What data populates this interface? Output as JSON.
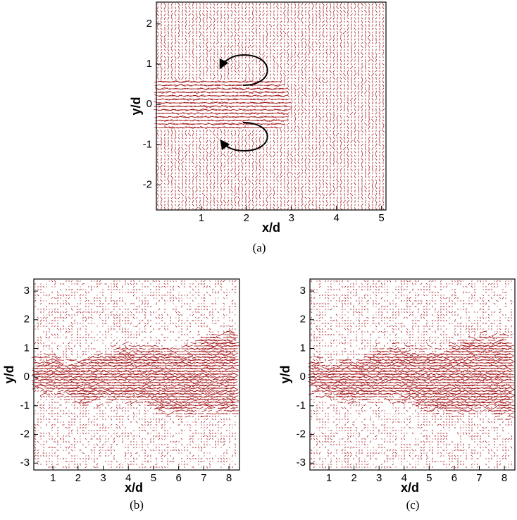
{
  "chart_data": [
    {
      "type": "quiver",
      "xlabel": "x/d",
      "ylabel": "y/d",
      "caption": "(a)",
      "xlim": [
        0,
        5.1
      ],
      "ylim": [
        -2.62,
        2.54
      ],
      "xticks": [
        1,
        2,
        3,
        4,
        5
      ],
      "yticks": [
        -2,
        -1,
        0,
        1,
        2
      ],
      "color": "#a3161a"
    },
    {
      "type": "quiver",
      "xlabel": "x/d",
      "ylabel": "y/d",
      "caption": "(b)",
      "xlim": [
        0.24,
        8.42
      ],
      "ylim": [
        -3.24,
        3.42
      ],
      "xticks": [
        1,
        2,
        3,
        4,
        5,
        6,
        7,
        8
      ],
      "yticks": [
        -3,
        -2,
        -1,
        0,
        1,
        2,
        3
      ],
      "color": "#a3161a"
    },
    {
      "type": "quiver",
      "xlabel": "x/d",
      "ylabel": "y/d",
      "caption": "(c)",
      "xlim": [
        0.24,
        8.42
      ],
      "ylim": [
        -3.24,
        3.42
      ],
      "xticks": [
        1,
        2,
        3,
        4,
        5,
        6,
        7,
        8
      ],
      "yticks": [
        -3,
        -2,
        -1,
        0,
        1,
        2,
        3
      ],
      "color": "#a3161a"
    }
  ]
}
